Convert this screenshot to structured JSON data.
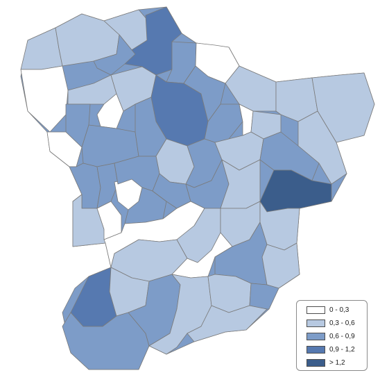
{
  "colors": {
    "c0": "#ffffff",
    "c1": "#b7c9e1",
    "c2": "#7d9cc8",
    "c3": "#5679b0",
    "c4": "#3b5d8b"
  },
  "legend": {
    "items": [
      {
        "label": "0 - 0,3",
        "color": "#ffffff"
      },
      {
        "label": "0,3 - 0,6",
        "color": "#b7c9e1"
      },
      {
        "label": "0,6 - 0,9",
        "color": "#7d9cc8"
      },
      {
        "label": "0,9 - 1,2",
        "color": "#5679b0"
      },
      {
        "label": "> 1,2",
        "color": "#3b5d8b"
      }
    ]
  }
}
